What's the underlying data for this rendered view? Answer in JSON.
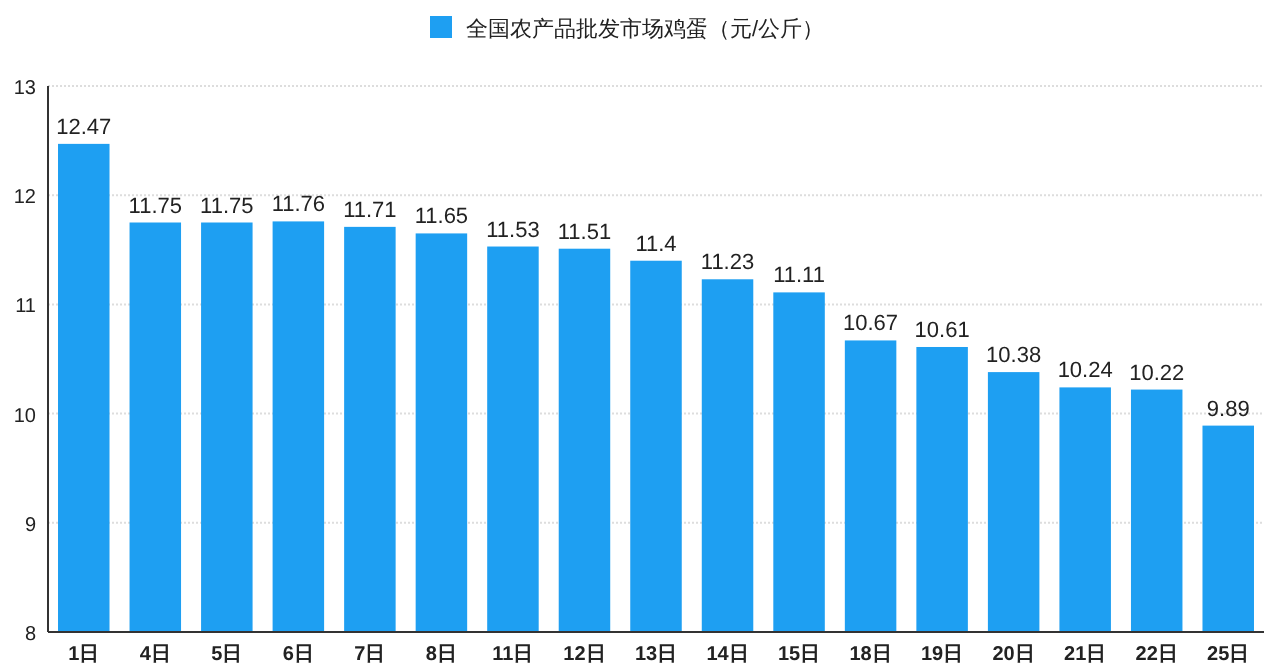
{
  "chart_data": {
    "type": "bar",
    "categories": [
      "1日",
      "4日",
      "5日",
      "6日",
      "7日",
      "8日",
      "11日",
      "12日",
      "13日",
      "14日",
      "15日",
      "18日",
      "19日",
      "20日",
      "21日",
      "22日",
      "25日"
    ],
    "series": [
      {
        "name": "全国农产品批发市场鸡蛋（元/公斤）",
        "color": "#1e9ff2",
        "values": [
          12.47,
          11.75,
          11.75,
          11.76,
          11.71,
          11.65,
          11.53,
          11.51,
          11.4,
          11.23,
          11.11,
          10.67,
          10.61,
          10.38,
          10.24,
          10.22,
          9.89
        ]
      }
    ],
    "ylim": [
      8,
      13
    ],
    "yticks": [
      8,
      9,
      10,
      11,
      12,
      13
    ],
    "grid": "y",
    "legend": "top",
    "data_labels": true
  }
}
